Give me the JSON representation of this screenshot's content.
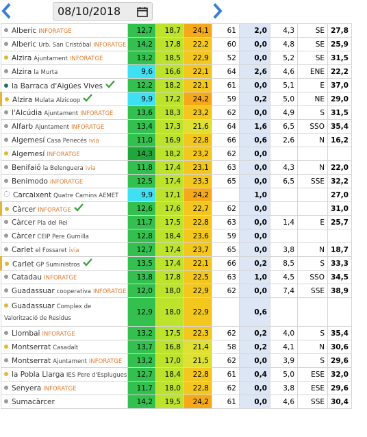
{
  "header": {
    "date": "08/10/2018"
  },
  "table": {
    "rows": [
      {
        "dot": "#9a9a9a",
        "name": "Alberic",
        "sub": null,
        "tag": "INFORATGE",
        "check": false,
        "cells": [
          "12,7",
          "18,7",
          "24,1",
          "61",
          "2,0",
          "4,3",
          "SE",
          "27,8"
        ]
      },
      {
        "dot": "#9a9a9a",
        "name": "Alberic",
        "sub": "Urb. San Cristóbal",
        "tag": "INFORATGE",
        "check": false,
        "cells": [
          "14,2",
          "17,8",
          "22,2",
          "60",
          "0,0",
          "4,8",
          "SE",
          "25,9"
        ]
      },
      {
        "dot": "#e5b53a",
        "name": "Alzira",
        "sub": "Ajuntament",
        "tag": "INFORATGE",
        "check": false,
        "cells": [
          "13,2",
          "18,5",
          "22,9",
          "52",
          "0,0",
          "5,2",
          "SE",
          "31,5"
        ]
      },
      {
        "dot": "#9a9a9a",
        "name": "Alzira",
        "sub": "la Murta",
        "tag": null,
        "check": false,
        "cells": [
          "9,6",
          "16,6",
          "22,1",
          "64",
          "2,6",
          "4,6",
          "ENE",
          "22,2"
        ]
      },
      {
        "dot": "#1f6f6b",
        "name": "la Barraca d'Aigües Vives",
        "sub": null,
        "tag": null,
        "check": true,
        "cells": [
          "12,2",
          "18,2",
          "22,1",
          "61",
          "0,0",
          "5,1",
          "E",
          "37,0"
        ]
      },
      {
        "dot": "#e5b53a",
        "name": "Alzira",
        "sub": "Mulata Alzicoop",
        "tag": null,
        "check": true,
        "cells": [
          "9,9",
          "17,2",
          "24,2",
          "59",
          "0,2",
          "5,0",
          "NE",
          "29,0"
        ]
      },
      {
        "dot": "#9a9a9a",
        "name": "l'Alcúdia",
        "sub": "Ajuntament",
        "tag": "INFORATGE",
        "check": false,
        "cells": [
          "13,6",
          "18,3",
          "23,2",
          "62",
          "0,0",
          "4,9",
          "S",
          "31,5"
        ]
      },
      {
        "dot": "#9a9a9a",
        "name": "Alfarb",
        "sub": "Ajuntament",
        "tag": "INFORATGE",
        "check": false,
        "cells": [
          "13,4",
          "17,3",
          "21,6",
          "64",
          "1,6",
          "6,5",
          "SSO",
          "35,4"
        ]
      },
      {
        "dot": "#9a9a9a",
        "name": "Algemesí",
        "sub": "Casa Penecés",
        "tag": "ivia",
        "check": false,
        "cells": [
          "11,0",
          "16,9",
          "22,8",
          "66",
          "0,6",
          "2,6",
          "N",
          "16,2"
        ]
      },
      {
        "dot": "#e5b53a",
        "name": "Algemesí",
        "sub": null,
        "tag": "INFORATGE",
        "check": false,
        "cells": [
          "14,3",
          "18,2",
          "23,2",
          "62",
          "0,0",
          null,
          null,
          null
        ]
      },
      {
        "dot": "#9a9a9a",
        "name": "Benifaió",
        "sub": "la Belenguera",
        "tag": "ivia",
        "check": false,
        "cells": [
          "11,8",
          "17,4",
          "23,1",
          "63",
          "0,0",
          "4,3",
          "N",
          "22,0"
        ]
      },
      {
        "dot": "#9a9a9a",
        "name": "Benimodo",
        "sub": null,
        "tag": "INFORATGE",
        "check": false,
        "cells": [
          "12,5",
          "17,4",
          "23,3",
          "65",
          "0,0",
          "6,5",
          "SSE",
          "32,2"
        ]
      },
      {
        "dot": "#ffffff",
        "name": "Carcaixent",
        "sub": "Quatre Camins AEMET",
        "tag": null,
        "check": false,
        "cells": [
          "9,9",
          "17,1",
          "24,2",
          null,
          "1,0",
          null,
          null,
          "27,0"
        ]
      },
      {
        "dot": "#e5b53a",
        "name": "Càrcer",
        "sub": null,
        "tag": "INFORATGE",
        "check": true,
        "cells": [
          "12,6",
          "17,6",
          "22,7",
          "62",
          "0,0",
          null,
          null,
          "31,0"
        ]
      },
      {
        "dot": "#9a9a9a",
        "name": "Càrcer",
        "sub": "Pla del Rei",
        "tag": null,
        "check": false,
        "cells": [
          "11,7",
          "17,5",
          "22,8",
          "63",
          "0,0",
          "1,4",
          "E",
          "25,7"
        ]
      },
      {
        "dot": "#9a9a9a",
        "name": "Càrcer",
        "sub": "CEIP Pere Gumilla",
        "tag": null,
        "check": false,
        "cells": [
          "12,8",
          "18,4",
          "23,6",
          "59",
          "0,0",
          null,
          null,
          null
        ]
      },
      {
        "dot": "#9a9a9a",
        "name": "Carlet",
        "sub": "el Fossaret",
        "tag": "ivia",
        "check": false,
        "cells": [
          "12,7",
          "17,4",
          "23,7",
          "65",
          "0,0",
          "3,8",
          "N",
          "18,7"
        ]
      },
      {
        "dot": "#e5b53a",
        "name": "Carlet",
        "sub": "GP Suministros",
        "tag": null,
        "check": true,
        "cells": [
          "13,5",
          "17,4",
          "22,1",
          "66",
          "0,2",
          "8,5",
          "S",
          "33,3"
        ]
      },
      {
        "dot": "#9a9a9a",
        "name": "Catadau",
        "sub": null,
        "tag": "INFORATGE",
        "check": false,
        "cells": [
          "13,8",
          "17,8",
          "22,5",
          "63",
          "1,0",
          "4,5",
          "SSO",
          "34,5"
        ]
      },
      {
        "dot": "#9a9a9a",
        "name": "Guadassuar",
        "sub": "cooperativa",
        "tag": "INFORATGE",
        "check": false,
        "cells": [
          "12,0",
          "18,0",
          "22,9",
          "62",
          "0,0",
          "7,4",
          "SSE",
          "38,9"
        ]
      },
      {
        "dot": "#e5b53a",
        "name": "Guadassuar",
        "sub": "Complex de Valorització de Residus",
        "tag": null,
        "check": false,
        "cells": [
          "12,9",
          "18,0",
          "22,9",
          null,
          "0,6",
          null,
          null,
          null
        ]
      },
      {
        "dot": "#9a9a9a",
        "name": "Llombai",
        "sub": null,
        "tag": "INFORATGE",
        "check": false,
        "cells": [
          "13,2",
          "17,5",
          "22,3",
          "62",
          "0,2",
          "4,0",
          "S",
          "35,4"
        ]
      },
      {
        "dot": "#e5b53a",
        "name": "Montserrat",
        "sub": "Casadalt",
        "tag": null,
        "check": false,
        "cells": [
          "13,7",
          "16,8",
          "21,4",
          "58",
          "0,2",
          "4,1",
          "N",
          "30,6"
        ]
      },
      {
        "dot": "#9a9a9a",
        "name": "Montserrat",
        "sub": "Ajuntament",
        "tag": "INFORATGE",
        "check": false,
        "cells": [
          "13,2",
          "17,0",
          "21,5",
          "62",
          "0,0",
          "3,9",
          "S",
          "29,6"
        ]
      },
      {
        "dot": "#e5b53a",
        "name": "la Pobla Llarga",
        "sub": "IES Pere d'Esplugues",
        "tag": null,
        "check": false,
        "cells": [
          "12,7",
          "18,4",
          "22,8",
          "61",
          "0,4",
          "5,0",
          "ESE",
          "32,0"
        ]
      },
      {
        "dot": "#9a9a9a",
        "name": "Senyera",
        "sub": null,
        "tag": "INFORATGE",
        "check": false,
        "cells": [
          "11,7",
          "18,0",
          "22,8",
          "62",
          "0,0",
          "3,8",
          "ESE",
          "29,6"
        ]
      },
      {
        "dot": "#9a9a9a",
        "name": "Sumacàrcer",
        "sub": null,
        "tag": null,
        "check": false,
        "cells": [
          "14,2",
          "19,5",
          "24,2",
          "61",
          "0,0",
          "4,6",
          "SSE",
          "30,4"
        ]
      }
    ]
  }
}
